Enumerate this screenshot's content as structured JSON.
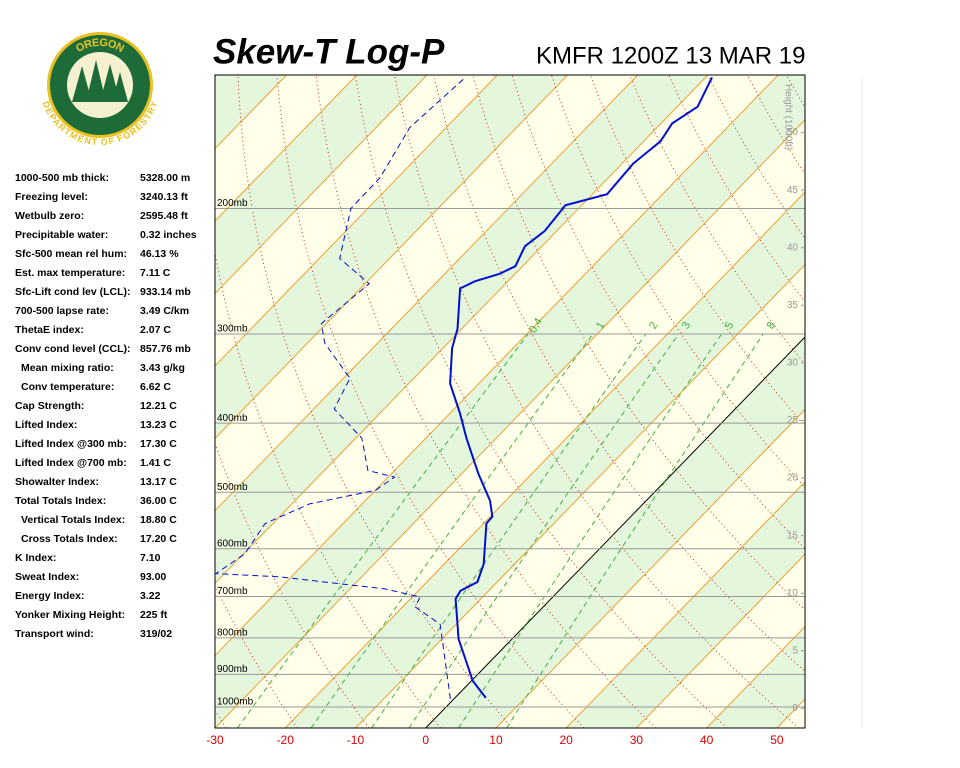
{
  "logo": {
    "top": "OREGON",
    "bottom": "DEPARTMENT OF FORESTRY"
  },
  "stats": [
    {
      "label": "1000-500 mb thick:",
      "value": "5328.00 m"
    },
    {
      "label": "Freezing level:",
      "value": "3240.13 ft"
    },
    {
      "label": "Wetbulb zero:",
      "value": "2595.48 ft"
    },
    {
      "label": "Precipitable water:",
      "value": "0.32 inches"
    },
    {
      "label": "Sfc-500 mean rel hum:",
      "value": "46.13 %"
    },
    {
      "label": "Est. max temperature:",
      "value": "7.11 C"
    },
    {
      "label": "Sfc-Lift cond lev (LCL):",
      "value": "933.14 mb"
    },
    {
      "label": "700-500 lapse rate:",
      "value": "3.49 C/km"
    },
    {
      "label": "ThetaE index:",
      "value": "2.07 C"
    },
    {
      "label": "Conv cond level (CCL):",
      "value": "857.76 mb"
    },
    {
      "label": "Mean mixing ratio:",
      "value": "3.43 g/kg"
    },
    {
      "label": "Conv temperature:",
      "value": "6.62 C"
    },
    {
      "label": "Cap Strength:",
      "value": "12.21 C"
    },
    {
      "label": "Lifted Index:",
      "value": "13.23 C"
    },
    {
      "label": "Lifted Index @300 mb:",
      "value": "17.30 C"
    },
    {
      "label": "Lifted Index @700 mb:",
      "value": "1.41 C"
    },
    {
      "label": "Showalter Index:",
      "value": "13.17 C"
    },
    {
      "label": "Total Totals Index:",
      "value": "36.00 C"
    },
    {
      "label": "Vertical Totals Index:",
      "value": "18.80 C"
    },
    {
      "label": "Cross Totals Index:",
      "value": "17.20 C"
    },
    {
      "label": "K Index:",
      "value": "7.10"
    },
    {
      "label": "Sweat Index:",
      "value": "93.00"
    },
    {
      "label": "Energy Index:",
      "value": "3.22"
    },
    {
      "label": "Yonker Mixing Height:",
      "value": "225 ft"
    },
    {
      "label": "Transport wind:",
      "value": "319/02"
    }
  ],
  "chart_data": {
    "type": "skewt",
    "title": "Skew-T Log-P",
    "subtitle": "KMFR 1200Z 13 MAR 19",
    "y2_label": "Height (1000ft)",
    "xlim": [
      -30,
      54
    ],
    "xticks": [
      -30,
      -20,
      -10,
      0,
      10,
      20,
      30,
      40,
      50
    ],
    "ylim": [
      1070,
      130
    ],
    "log_y": true,
    "yticks": [
      {
        "value": 200,
        "label": "200mb"
      },
      {
        "value": 300,
        "label": "300mb"
      },
      {
        "value": 400,
        "label": "400mb"
      },
      {
        "value": 500,
        "label": "500mb"
      },
      {
        "value": 600,
        "label": "600mb"
      },
      {
        "value": 700,
        "label": "700mb"
      },
      {
        "value": 800,
        "label": "800mb"
      },
      {
        "value": 900,
        "label": "900mb"
      },
      {
        "value": 1000,
        "label": "1000mb"
      }
    ],
    "y2lim": [
      -1.7,
      55
    ],
    "y2ticks": [
      0,
      5,
      10,
      15,
      20,
      25,
      30,
      35,
      40,
      45,
      50
    ],
    "mixing_ratios": [
      0.4,
      1,
      2,
      3,
      5,
      8
    ],
    "series": [
      {
        "color": "#0010d0",
        "dashed": false,
        "pressure": [
          971,
          919,
          803,
          705,
          687,
          668,
          630,
          553,
          541,
          514,
          471,
          420,
          388,
          352,
          314,
          295,
          259,
          253,
          247,
          241,
          226,
          215,
          198,
          191,
          173,
          161,
          152,
          144,
          131
        ],
        "values": [
          4.4,
          0.2,
          -7.6,
          -13.6,
          -14.0,
          -12.8,
          -14.4,
          -19.6,
          -19.7,
          -22.2,
          -27.6,
          -34.2,
          -38.5,
          -44.1,
          -48.7,
          -50.6,
          -55.8,
          -54.7,
          -52.2,
          -51.0,
          -52.4,
          -51.7,
          -52.3,
          -47.9,
          -48.4,
          -47.6,
          -48.4,
          -47.1,
          -49.1
        ]
      },
      {
        "color": "#0010d0",
        "dashed": true,
        "pressure": [
          974,
          765,
          724,
          701,
          683,
          657,
          650,
          610,
          553,
          519,
          497,
          476,
          466,
          420,
          382,
          346,
          309,
          290,
          255,
          235,
          200,
          181,
          154,
          131
        ],
        "values": [
          -0.5,
          -12.3,
          -18.2,
          -18.9,
          -25.0,
          -41.6,
          -51.2,
          -49.8,
          -51.1,
          -47.5,
          -40.0,
          -39.1,
          -43.8,
          -49.1,
          -57.1,
          -59.1,
          -67.5,
          -70.7,
          -69.4,
          -77.1,
          -82.4,
          -82.5,
          -85.2,
          -84.2
        ]
      }
    ]
  }
}
